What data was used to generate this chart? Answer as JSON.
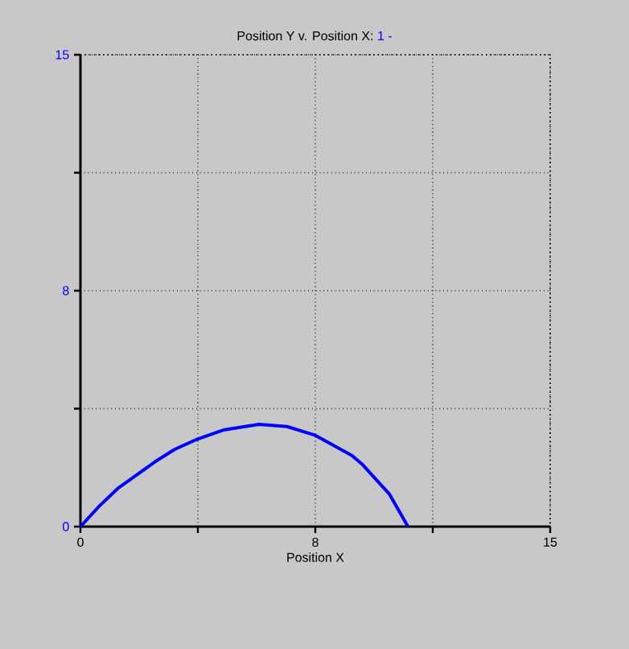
{
  "chart_data": {
    "type": "line",
    "title": "Position Y v. Position X:",
    "xlabel": "Position X",
    "x": [
      0,
      0.6,
      1.19,
      2.38,
      3.0,
      3.71,
      4.6,
      5.7,
      6.6,
      7.48,
      8.67,
      9.01,
      9.86,
      10.46
    ],
    "series": [
      {
        "name": "1 -",
        "color": "#0000ff",
        "values": [
          0,
          0.65,
          1.21,
          2.06,
          2.45,
          2.77,
          3.08,
          3.25,
          3.18,
          2.91,
          2.26,
          1.97,
          1.04,
          0
        ]
      }
    ],
    "xlim": [
      0,
      15
    ],
    "ylim": [
      0,
      15
    ],
    "xticks": [
      0,
      {
        "value": 3.75,
        "label": null
      },
      {
        "value": 7.5,
        "label": "8"
      },
      {
        "value": 11.25,
        "label": null
      },
      15
    ],
    "yticks": [
      0,
      {
        "value": 3.75,
        "label": null
      },
      {
        "value": 7.5,
        "label": "8"
      },
      {
        "value": 11.25,
        "label": null
      },
      15
    ],
    "grid": true,
    "legend": "top",
    "line_style": "solid",
    "marker": "none"
  }
}
